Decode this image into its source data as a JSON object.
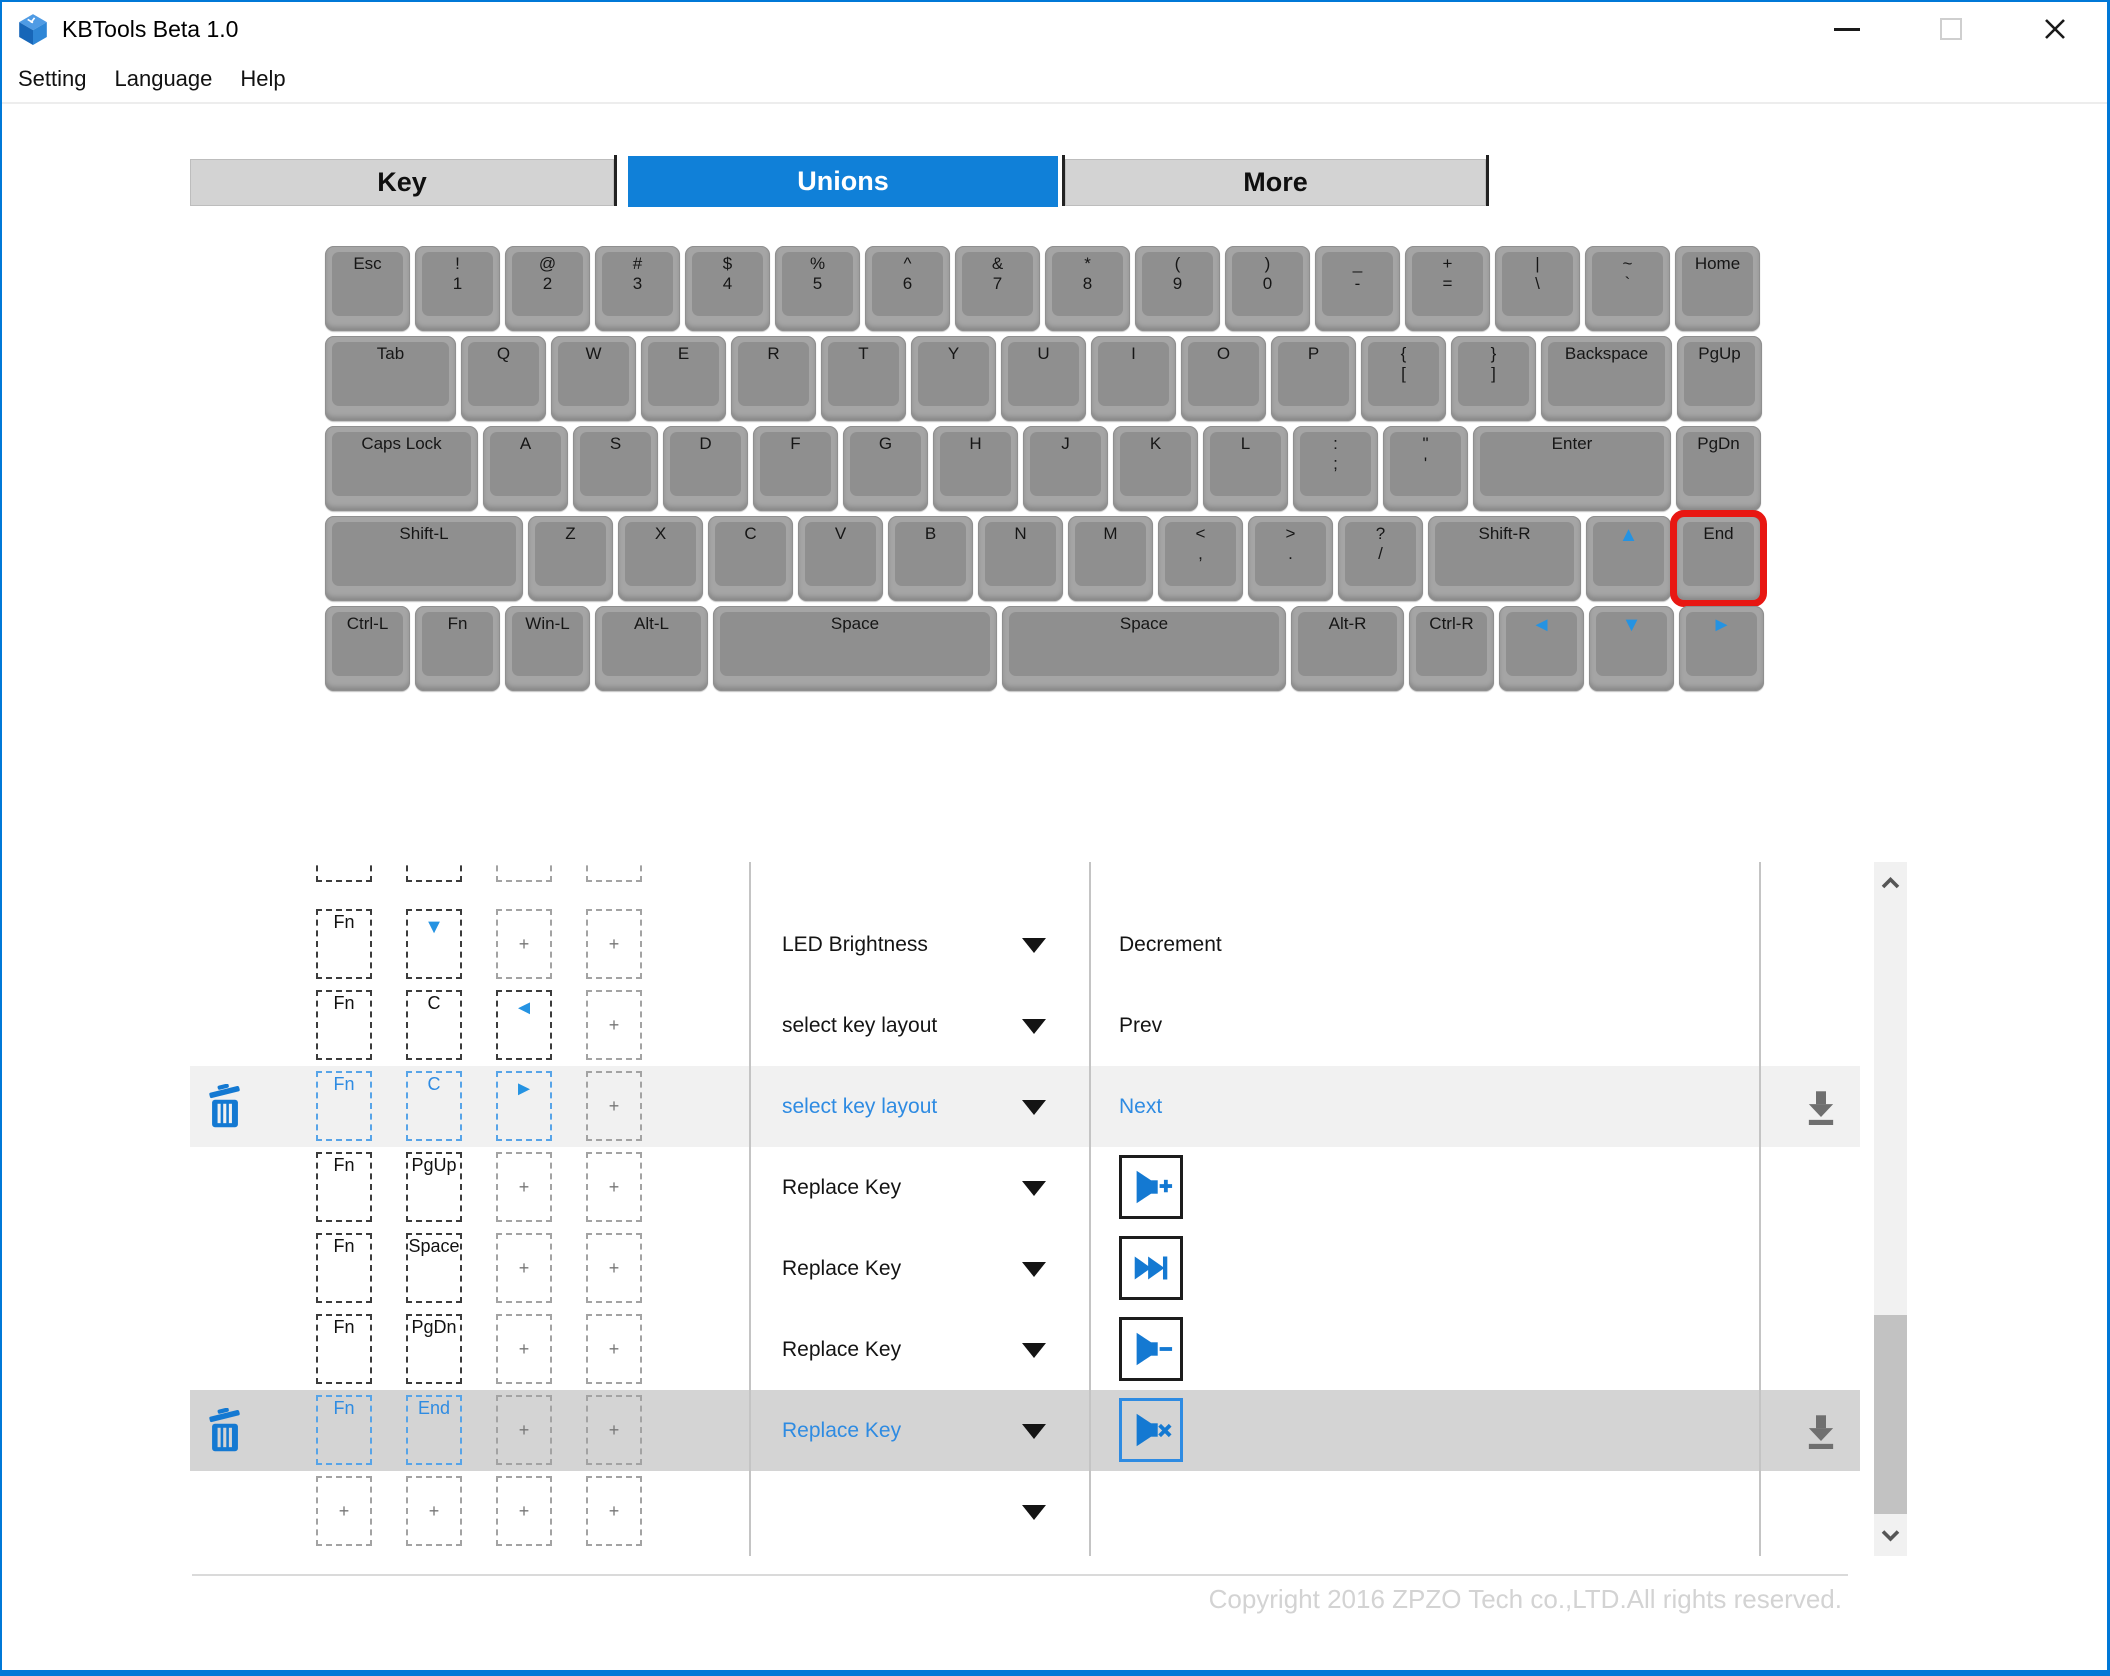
{
  "window": {
    "title": "KBTools Beta 1.0"
  },
  "menu": {
    "items": [
      "Setting",
      "Language",
      "Help"
    ]
  },
  "tabs": [
    {
      "label": "Key",
      "active": false
    },
    {
      "label": "Unions",
      "active": true
    },
    {
      "label": "More",
      "active": false
    }
  ],
  "keyboard": {
    "highlighted_key": "End",
    "rows": [
      [
        {
          "label": "Esc",
          "u": 1
        },
        {
          "top": "!",
          "bottom": "1",
          "u": 1
        },
        {
          "top": "@",
          "bottom": "2",
          "u": 1
        },
        {
          "top": "#",
          "bottom": "3",
          "u": 1
        },
        {
          "top": "$",
          "bottom": "4",
          "u": 1
        },
        {
          "top": "%",
          "bottom": "5",
          "u": 1
        },
        {
          "top": "^",
          "bottom": "6",
          "u": 1
        },
        {
          "top": "&",
          "bottom": "7",
          "u": 1
        },
        {
          "top": "*",
          "bottom": "8",
          "u": 1
        },
        {
          "top": "(",
          "bottom": "9",
          "u": 1
        },
        {
          "top": ")",
          "bottom": "0",
          "u": 1
        },
        {
          "top": "_",
          "bottom": "-",
          "u": 1
        },
        {
          "top": "+",
          "bottom": "=",
          "u": 1
        },
        {
          "top": "|",
          "bottom": "\\",
          "u": 1
        },
        {
          "top": "~",
          "bottom": "`",
          "u": 1
        },
        {
          "label": "Home",
          "u": 1
        }
      ],
      [
        {
          "label": "Tab",
          "u": 1.5
        },
        {
          "label": "Q",
          "u": 1
        },
        {
          "label": "W",
          "u": 1
        },
        {
          "label": "E",
          "u": 1
        },
        {
          "label": "R",
          "u": 1
        },
        {
          "label": "T",
          "u": 1
        },
        {
          "label": "Y",
          "u": 1
        },
        {
          "label": "U",
          "u": 1
        },
        {
          "label": "I",
          "u": 1
        },
        {
          "label": "O",
          "u": 1
        },
        {
          "label": "P",
          "u": 1
        },
        {
          "top": "{",
          "bottom": "[",
          "u": 1
        },
        {
          "top": "}",
          "bottom": "]",
          "u": 1
        },
        {
          "label": "Backspace",
          "u": 1.5
        },
        {
          "label": "PgUp",
          "u": 1
        }
      ],
      [
        {
          "label": "Caps Lock",
          "u": 1.75
        },
        {
          "label": "A",
          "u": 1
        },
        {
          "label": "S",
          "u": 1
        },
        {
          "label": "D",
          "u": 1
        },
        {
          "label": "F",
          "u": 1
        },
        {
          "label": "G",
          "u": 1
        },
        {
          "label": "H",
          "u": 1
        },
        {
          "label": "J",
          "u": 1
        },
        {
          "label": "K",
          "u": 1
        },
        {
          "label": "L",
          "u": 1
        },
        {
          "top": ":",
          "bottom": ";",
          "u": 1
        },
        {
          "top": "\"",
          "bottom": "'",
          "u": 1
        },
        {
          "label": "Enter",
          "u": 2.25
        },
        {
          "label": "PgDn",
          "u": 1
        }
      ],
      [
        {
          "label": "Shift-L",
          "u": 2.25
        },
        {
          "label": "Z",
          "u": 1
        },
        {
          "label": "X",
          "u": 1
        },
        {
          "label": "C",
          "u": 1
        },
        {
          "label": "V",
          "u": 1
        },
        {
          "label": "B",
          "u": 1
        },
        {
          "label": "N",
          "u": 1
        },
        {
          "label": "M",
          "u": 1
        },
        {
          "top": "<",
          "bottom": ",",
          "u": 1
        },
        {
          "top": ">",
          "bottom": ".",
          "u": 1
        },
        {
          "top": "?",
          "bottom": "/",
          "u": 1
        },
        {
          "label": "Shift-R",
          "u": 1.75
        },
        {
          "icon": "up",
          "u": 1
        },
        {
          "label": "End",
          "u": 1,
          "highlight": true
        }
      ],
      [
        {
          "label": "Ctrl-L",
          "u": 1
        },
        {
          "label": "Fn",
          "u": 1
        },
        {
          "label": "Win-L",
          "u": 1
        },
        {
          "label": "Alt-L",
          "u": 1.3
        },
        {
          "label": "Space",
          "u": 3.2
        },
        {
          "label": "Space",
          "u": 3.2
        },
        {
          "label": "Alt-R",
          "u": 1.3
        },
        {
          "label": "Ctrl-R",
          "u": 1
        },
        {
          "icon": "left",
          "u": 1
        },
        {
          "icon": "down",
          "u": 1
        },
        {
          "icon": "right",
          "u": 1
        }
      ]
    ]
  },
  "table": {
    "plus_glyph": "+",
    "rows": [
      {
        "type": "partial",
        "boxes": [
          {
            "style": "key"
          },
          {
            "style": "key"
          },
          {
            "style": "plus"
          },
          {
            "style": "plus"
          }
        ]
      },
      {
        "boxes": [
          {
            "label": "Fn"
          },
          {
            "arrow": "down"
          },
          {
            "style": "plus"
          },
          {
            "style": "plus"
          }
        ],
        "function": "LED Brightness",
        "action_text": "Decrement"
      },
      {
        "boxes": [
          {
            "label": "Fn"
          },
          {
            "label": "C"
          },
          {
            "arrow": "left"
          },
          {
            "style": "plus"
          }
        ],
        "function": "select key layout",
        "action_text": "Prev"
      },
      {
        "selected": "light",
        "boxes": [
          {
            "label": "Fn"
          },
          {
            "label": "C"
          },
          {
            "arrow": "right"
          },
          {
            "style": "plus"
          }
        ],
        "function": "select key layout",
        "action_text": "Next"
      },
      {
        "boxes": [
          {
            "label": "Fn"
          },
          {
            "label": "PgUp"
          },
          {
            "style": "plus"
          },
          {
            "style": "plus"
          }
        ],
        "function": "Replace Key",
        "action_icon": "volume-up-icon"
      },
      {
        "boxes": [
          {
            "label": "Fn"
          },
          {
            "label": "Space"
          },
          {
            "style": "plus"
          },
          {
            "style": "plus"
          }
        ],
        "function": "Replace Key",
        "action_icon": "next-track-icon"
      },
      {
        "boxes": [
          {
            "label": "Fn"
          },
          {
            "label": "PgDn"
          },
          {
            "style": "plus"
          },
          {
            "style": "plus"
          }
        ],
        "function": "Replace Key",
        "action_icon": "volume-down-icon"
      },
      {
        "selected": "gray",
        "boxes": [
          {
            "label": "Fn"
          },
          {
            "label": "End"
          },
          {
            "style": "plus"
          },
          {
            "style": "plus"
          }
        ],
        "function": "Replace Key",
        "action_icon": "mute-icon"
      },
      {
        "type": "empty",
        "boxes": [
          {
            "style": "plus"
          },
          {
            "style": "plus"
          },
          {
            "style": "plus"
          },
          {
            "style": "plus"
          }
        ]
      }
    ]
  },
  "footer": {
    "copyright": "Copyright 2016 ZPZO Tech co.,LTD.All rights reserved."
  },
  "colors": {
    "accent": "#1080d8",
    "selected-text": "#2e8be2",
    "key-arrow": "#2593e2",
    "highlight-ring": "#e81712",
    "icon-blue": "#1479d2",
    "window-border": "#0078d7",
    "inactive-tab": "#d3d3d3",
    "selected-row-light": "#f1f1f1",
    "selected-row-gray": "#d4d4d4",
    "download-gray": "#6f6f6f",
    "copyright": "#d3d3d3"
  }
}
